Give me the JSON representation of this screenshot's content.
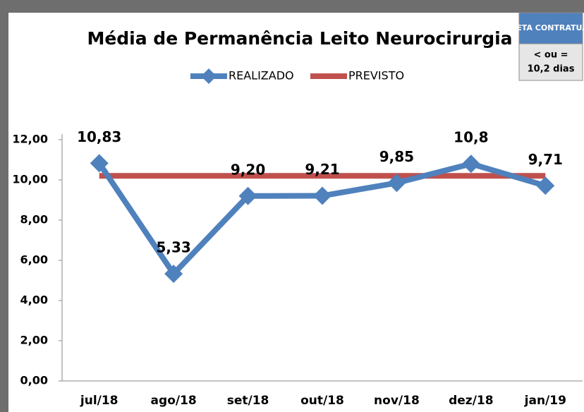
{
  "chart_data": {
    "type": "line",
    "title": "Média de Permanência Leito Neurocirurgia",
    "categories": [
      "jul/18",
      "ago/18",
      "set/18",
      "out/18",
      "nov/18",
      "dez/18",
      "jan/19"
    ],
    "series": [
      {
        "name": "REALIZADO",
        "color": "#4f81bd",
        "values": [
          10.83,
          5.33,
          9.2,
          9.21,
          9.85,
          10.8,
          9.71
        ],
        "value_labels": [
          "10,83",
          "5,33",
          "9,20",
          "9,21",
          "9,85",
          "10,8",
          "9,71"
        ],
        "marker": "diamond"
      },
      {
        "name": "PREVISTO",
        "color": "#c0504d",
        "values": [
          10.2,
          10.2,
          10.2,
          10.2,
          10.2,
          10.2,
          10.2
        ]
      }
    ],
    "ylim": [
      0,
      12
    ],
    "yticks": [
      {
        "value": 0,
        "label": "0,00"
      },
      {
        "value": 2,
        "label": "2,00"
      },
      {
        "value": 4,
        "label": "4,00"
      },
      {
        "value": 6,
        "label": "6,00"
      },
      {
        "value": 8,
        "label": "8,00"
      },
      {
        "value": 10,
        "label": "10,00"
      },
      {
        "value": 12,
        "label": "12,00"
      }
    ],
    "grid": false,
    "legend": "top"
  },
  "meta_box": {
    "title": "META CONTRATUAL",
    "lines": [
      "< ou =",
      "10,2 dias"
    ]
  }
}
